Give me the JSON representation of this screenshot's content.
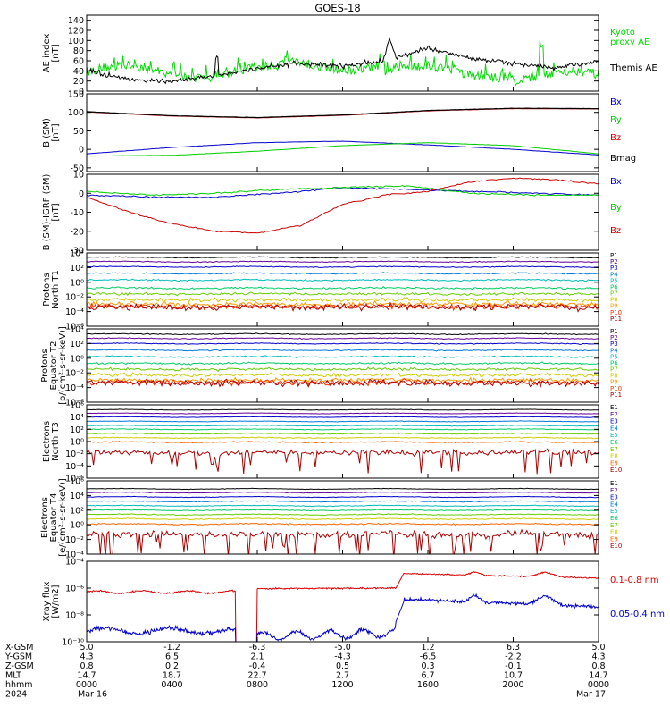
{
  "title": "GOES-18",
  "chart_data": [
    {
      "type": "line",
      "name": "ae-index",
      "ylabel": [
        "AE index",
        "[nT]"
      ],
      "ylim": [
        0,
        150
      ],
      "yticks": [
        "0",
        "20",
        "40",
        "60",
        "80",
        "100",
        "120",
        "140"
      ],
      "ytick_values": [
        0,
        20,
        40,
        60,
        80,
        100,
        120,
        140
      ],
      "log": false,
      "series": [
        {
          "name": "Kyoto proxy AE",
          "legend": [
            "Kyoto",
            "proxy AE"
          ],
          "color": "#00dd00",
          "kind": "ae_kyoto"
        },
        {
          "name": "Themis AE",
          "legend": [
            "Themis AE"
          ],
          "color": "#000000",
          "kind": "ae_themis"
        }
      ]
    },
    {
      "type": "line",
      "name": "b-sm",
      "ylabel": [
        "B (SM)",
        "[nT]"
      ],
      "ylim": [
        -60,
        150
      ],
      "yticks": [
        "-50",
        "0",
        "50",
        "100",
        "150"
      ],
      "ytick_values": [
        -50,
        0,
        50,
        100,
        150
      ],
      "log": false,
      "series": [
        {
          "name": "Bx",
          "color": "#0000cc",
          "x": [
            0,
            4,
            8,
            12,
            16,
            20,
            24
          ],
          "y": [
            -12,
            5,
            18,
            22,
            12,
            0,
            -15
          ]
        },
        {
          "name": "By",
          "color": "#00cc00",
          "x": [
            0,
            4,
            8,
            12,
            16,
            20,
            24
          ],
          "y": [
            -18,
            -16,
            -5,
            10,
            18,
            10,
            -12
          ]
        },
        {
          "name": "Bz",
          "color": "#cc0000",
          "x": [
            0,
            4,
            8,
            12,
            16,
            20,
            24
          ],
          "y": [
            101,
            90,
            85,
            92,
            104,
            110,
            109
          ]
        },
        {
          "name": "Bmag",
          "color": "#000000",
          "x": [
            0,
            4,
            8,
            12,
            16,
            20,
            24
          ],
          "y": [
            102,
            91,
            86,
            93,
            105,
            111,
            110
          ]
        }
      ]
    },
    {
      "type": "line",
      "name": "b-igrf",
      "ylabel": [
        "B (SM)-IGRF (SM)",
        "[nT]"
      ],
      "ylim": [
        -30,
        10
      ],
      "yticks": [
        "-30",
        "-20",
        "-10",
        "0",
        "10"
      ],
      "ytick_values": [
        -30,
        -20,
        -10,
        0,
        10
      ],
      "log": false,
      "series": [
        {
          "name": "Bx",
          "color": "#0000cc",
          "x": [
            0,
            3,
            6,
            9,
            12,
            15,
            18,
            21,
            24
          ],
          "y": [
            -1,
            -2,
            -2,
            0,
            3,
            2,
            1,
            0,
            -1
          ]
        },
        {
          "name": "By",
          "color": "#00cc00",
          "x": [
            0,
            3,
            6,
            9,
            12,
            15,
            18,
            21,
            24
          ],
          "y": [
            1,
            -1,
            0,
            2,
            3,
            4,
            0,
            -1,
            -1
          ]
        },
        {
          "name": "Bz",
          "color": "#cc0000",
          "x": [
            0,
            2,
            4,
            6,
            8,
            10,
            12,
            14,
            16,
            18,
            20,
            22,
            24
          ],
          "y": [
            -2,
            -10,
            -16,
            -20,
            -21,
            -17,
            -6,
            -1,
            1,
            6,
            8,
            7,
            5
          ]
        }
      ]
    },
    {
      "type": "line",
      "name": "protons-north",
      "ylabel": [
        "Protons",
        "North T1"
      ],
      "ylim": [
        -6,
        4
      ],
      "yticks": [
        "10⁴",
        "10²",
        "10⁰",
        "10⁻²",
        "10⁻⁴",
        "10⁻⁶"
      ],
      "ytick_values": [
        4,
        2,
        0,
        -2,
        -4,
        -6
      ],
      "log": true,
      "channels": [
        "P1",
        "P2",
        "P3",
        "P4",
        "P5",
        "P6",
        "P7",
        "P8",
        "P9",
        "P10",
        "P11"
      ],
      "channel_colors": [
        "#000000",
        "#660099",
        "#0000cc",
        "#0077dd",
        "#00bbbb",
        "#00cc66",
        "#66cc00",
        "#cccc00",
        "#ff9900",
        "#ff3300",
        "#aa0000"
      ],
      "channel_log_levels": [
        3.4,
        2.8,
        2.1,
        1.2,
        0.3,
        -0.8,
        -1.6,
        -2.4,
        -3.0,
        -3.3,
        -3.4
      ],
      "noise": [
        0.05,
        0.05,
        0.05,
        0.06,
        0.08,
        0.1,
        0.15,
        0.2,
        0.25,
        0.3,
        0.35
      ]
    },
    {
      "type": "line",
      "name": "protons-equator",
      "ylabel": [
        "Protons",
        "Equator T2",
        "[p/(cm²-s-sr-keV)]"
      ],
      "ylim": [
        -6,
        4
      ],
      "yticks": [
        "10⁴",
        "10²",
        "10⁰",
        "10⁻²",
        "10⁻⁴",
        "10⁻⁶"
      ],
      "ytick_values": [
        4,
        2,
        0,
        -2,
        -4,
        -6
      ],
      "log": true,
      "channels": [
        "P1",
        "P2",
        "P3",
        "P4",
        "P5",
        "P6",
        "P7",
        "P8",
        "P9",
        "P10",
        "P11"
      ],
      "channel_colors": [
        "#000000",
        "#660099",
        "#0000cc",
        "#0077dd",
        "#00bbbb",
        "#00cc66",
        "#66cc00",
        "#cccc00",
        "#ff9900",
        "#ff3300",
        "#aa0000"
      ],
      "channel_log_levels": [
        3.3,
        2.7,
        2.0,
        1.1,
        0.2,
        -0.7,
        -1.5,
        -2.3,
        -3.0,
        -3.3,
        -3.4
      ],
      "noise": [
        0.05,
        0.05,
        0.05,
        0.06,
        0.08,
        0.1,
        0.15,
        0.2,
        0.25,
        0.3,
        0.35
      ]
    },
    {
      "type": "line",
      "name": "electrons-north",
      "ylabel": [
        "Electrons",
        "North T3"
      ],
      "ylim": [
        -6,
        6
      ],
      "yticks": [
        "10⁶",
        "10⁴",
        "10²",
        "10⁰",
        "10⁻²",
        "10⁻⁴",
        "10⁻⁶"
      ],
      "ytick_values": [
        6,
        4,
        2,
        0,
        -2,
        -4,
        -6
      ],
      "log": true,
      "channels": [
        "E1",
        "E2",
        "E3",
        "E4",
        "E5",
        "E6",
        "E7",
        "E8",
        "E9",
        "E10"
      ],
      "channel_colors": [
        "#000000",
        "#660099",
        "#0000cc",
        "#0077dd",
        "#00bbbb",
        "#00cc66",
        "#66cc00",
        "#cccc00",
        "#ff6600",
        "#aa0000"
      ],
      "channel_log_levels": [
        5.2,
        4.6,
        4.0,
        3.3,
        2.6,
        2.0,
        1.3,
        0.6,
        -0.1,
        -1.8
      ],
      "noise": [
        0.03,
        0.03,
        0.03,
        0.04,
        0.04,
        0.05,
        0.05,
        0.06,
        0.07,
        0.4
      ]
    },
    {
      "type": "line",
      "name": "electrons-equator",
      "ylabel": [
        "Electrons",
        "Equator T4",
        "[e/(cm²-s-sr-keV)]"
      ],
      "ylim": [
        -4,
        6
      ],
      "yticks": [
        "10⁶",
        "10⁴",
        "10²",
        "10⁰",
        "10⁻²",
        "10⁻⁴"
      ],
      "ytick_values": [
        6,
        4,
        2,
        0,
        -2,
        -4
      ],
      "log": true,
      "channels": [
        "E1",
        "E2",
        "E3",
        "E4",
        "E5",
        "E6",
        "E7",
        "E8",
        "E9",
        "E10"
      ],
      "channel_colors": [
        "#000000",
        "#660099",
        "#0000cc",
        "#0077dd",
        "#00bbbb",
        "#00cc66",
        "#66cc00",
        "#cccc00",
        "#ff6600",
        "#aa0000"
      ],
      "channel_log_levels": [
        4.9,
        4.4,
        3.8,
        3.2,
        2.6,
        2.0,
        1.4,
        0.8,
        0.1,
        -1.3
      ],
      "noise": [
        0.03,
        0.03,
        0.03,
        0.04,
        0.04,
        0.05,
        0.05,
        0.06,
        0.07,
        0.4
      ]
    },
    {
      "type": "line",
      "name": "xray-flux",
      "ylabel": [
        "Xray flux",
        "[W/m2]"
      ],
      "ylim": [
        -10,
        -4
      ],
      "yticks": [
        "10⁻⁴",
        "10⁻⁶",
        "10⁻⁸",
        "10⁻¹⁰"
      ],
      "ytick_values": [
        -4,
        -6,
        -8,
        -10
      ],
      "log": true,
      "series": [
        {
          "name": "0.1-0.8 nm",
          "color": "#dd0000",
          "kind": "xray_long"
        },
        {
          "name": "0.05-0.4 nm",
          "color": "#0000cc",
          "kind": "xray_short"
        }
      ]
    }
  ],
  "xaxis": {
    "range_hours": [
      0,
      24
    ],
    "tick_hours": [
      0,
      4,
      8,
      12,
      16,
      20,
      24
    ],
    "rows": [
      {
        "label": "X-GSM",
        "values": [
          "5.0",
          "-1.2",
          "-6.3",
          "-5.0",
          "1.2",
          "6.3",
          "5.0"
        ]
      },
      {
        "label": "Y-GSM",
        "values": [
          "4.3",
          "6.5",
          "2.1",
          "-4.3",
          "-6.5",
          "-2.2",
          "4.3"
        ]
      },
      {
        "label": "Z-GSM",
        "values": [
          "0.8",
          "0.2",
          "-0.4",
          "0.5",
          "0.3",
          "-0.1",
          "0.8"
        ]
      },
      {
        "label": "MLT",
        "values": [
          "14.7",
          "18.7",
          "22.7",
          "2.7",
          "6.7",
          "10.7",
          "14.7"
        ]
      },
      {
        "label": "hhmm",
        "values": [
          "0000",
          "0400",
          "0800",
          "1200",
          "1600",
          "2000",
          "0000"
        ]
      },
      {
        "label": "2024",
        "values": [
          "Mar 16",
          "",
          "",
          "",
          "",
          "",
          "Mar 17"
        ]
      }
    ]
  }
}
